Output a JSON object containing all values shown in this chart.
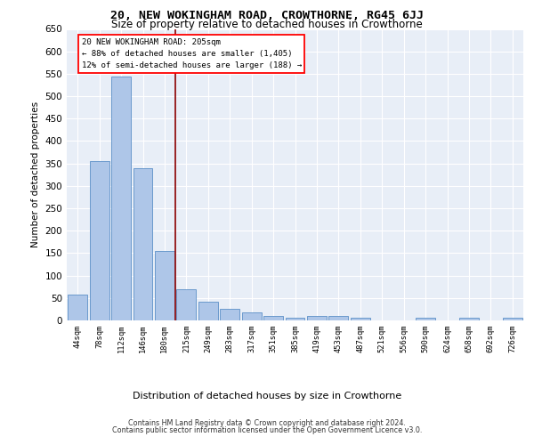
{
  "title": "20, NEW WOKINGHAM ROAD, CROWTHORNE, RG45 6JJ",
  "subtitle": "Size of property relative to detached houses in Crowthorne",
  "xlabel": "Distribution of detached houses by size in Crowthorne",
  "ylabel": "Number of detached properties",
  "bar_color": "#aec6e8",
  "bar_edge_color": "#5b8fc7",
  "background_color": "#e8eef7",
  "grid_color": "#ffffff",
  "categories": [
    "44sqm",
    "78sqm",
    "112sqm",
    "146sqm",
    "180sqm",
    "215sqm",
    "249sqm",
    "283sqm",
    "317sqm",
    "351sqm",
    "385sqm",
    "419sqm",
    "453sqm",
    "487sqm",
    "521sqm",
    "556sqm",
    "590sqm",
    "624sqm",
    "658sqm",
    "692sqm",
    "726sqm"
  ],
  "values": [
    57,
    355,
    543,
    339,
    155,
    70,
    42,
    25,
    17,
    10,
    5,
    9,
    9,
    5,
    0,
    0,
    5,
    0,
    5,
    0,
    5
  ],
  "property_line_x": 4.5,
  "annotation_line1": "20 NEW WOKINGHAM ROAD: 205sqm",
  "annotation_line2": "← 88% of detached houses are smaller (1,405)",
  "annotation_line3": "12% of semi-detached houses are larger (188) →",
  "ylim_min": 0,
  "ylim_max": 650,
  "yticks": [
    0,
    50,
    100,
    150,
    200,
    250,
    300,
    350,
    400,
    450,
    500,
    550,
    600,
    650
  ],
  "footer_line1": "Contains HM Land Registry data © Crown copyright and database right 2024.",
  "footer_line2": "Contains public sector information licensed under the Open Government Licence v3.0."
}
